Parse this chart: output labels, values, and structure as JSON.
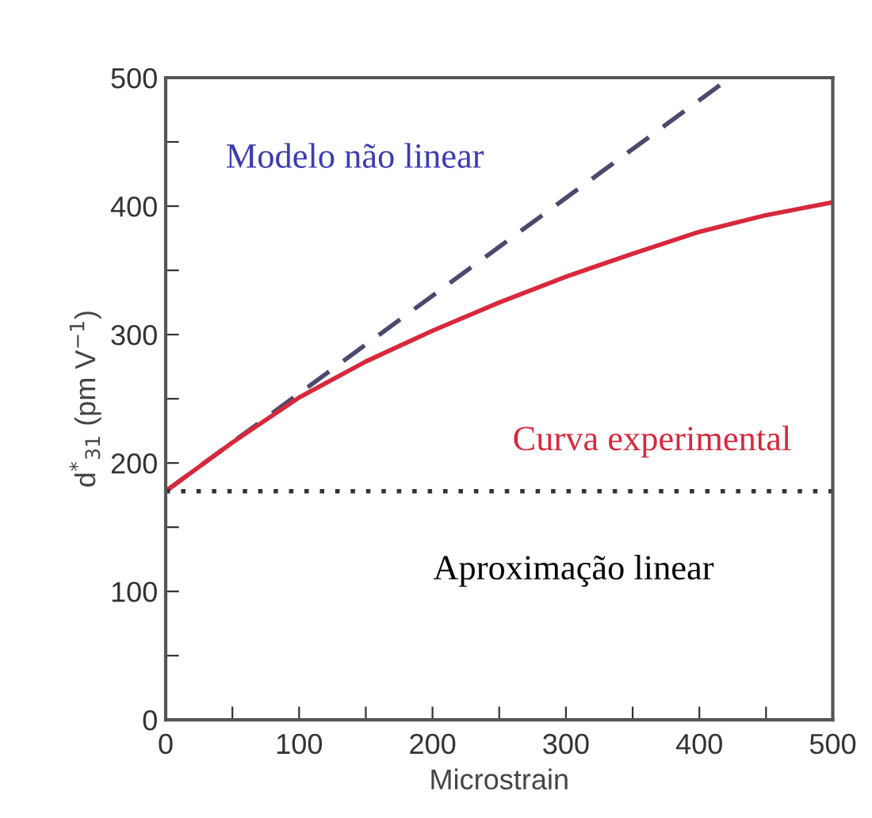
{
  "chart_data": {
    "type": "line",
    "xlabel": "Microstrain",
    "ylabel": "d$^{*}$$_{31}$ (pm V$^{−1}$)",
    "series": [
      {
        "name": "Modelo não linear",
        "color": "#4a4a6e",
        "line_style": "dashed",
        "x": [
          0,
          423
        ],
        "values": [
          178,
          500
        ]
      },
      {
        "name": "Curva experimental",
        "color": "#d8283c",
        "line_style": "solid",
        "x": [
          0,
          50,
          100,
          150,
          200,
          250,
          300,
          350,
          400,
          450,
          500
        ],
        "values": [
          178,
          216,
          251,
          279,
          303,
          325,
          345,
          363,
          380,
          393,
          403
        ]
      }
    ],
    "ref_lines": [
      {
        "axis": "y",
        "value": 178,
        "label": "Aproximação linear",
        "color": "#333333",
        "line_style": "dotted"
      }
    ],
    "xlim": [
      0,
      500
    ],
    "ylim": [
      0,
      500
    ],
    "xticks": [
      0,
      {
        "value": 50,
        "label": null
      },
      100,
      {
        "value": 150,
        "label": null
      },
      200,
      {
        "value": 250,
        "label": null
      },
      300,
      {
        "value": 350,
        "label": null
      },
      400,
      {
        "value": 450,
        "label": null
      },
      500
    ],
    "yticks": [
      0,
      {
        "value": 50,
        "label": null
      },
      100,
      {
        "value": 150,
        "label": null
      },
      200,
      {
        "value": 250,
        "label": null
      },
      300,
      {
        "value": 350,
        "label": null
      },
      400,
      {
        "value": 450,
        "label": null
      },
      500
    ],
    "grid": false,
    "legend": false,
    "marker": "none"
  }
}
